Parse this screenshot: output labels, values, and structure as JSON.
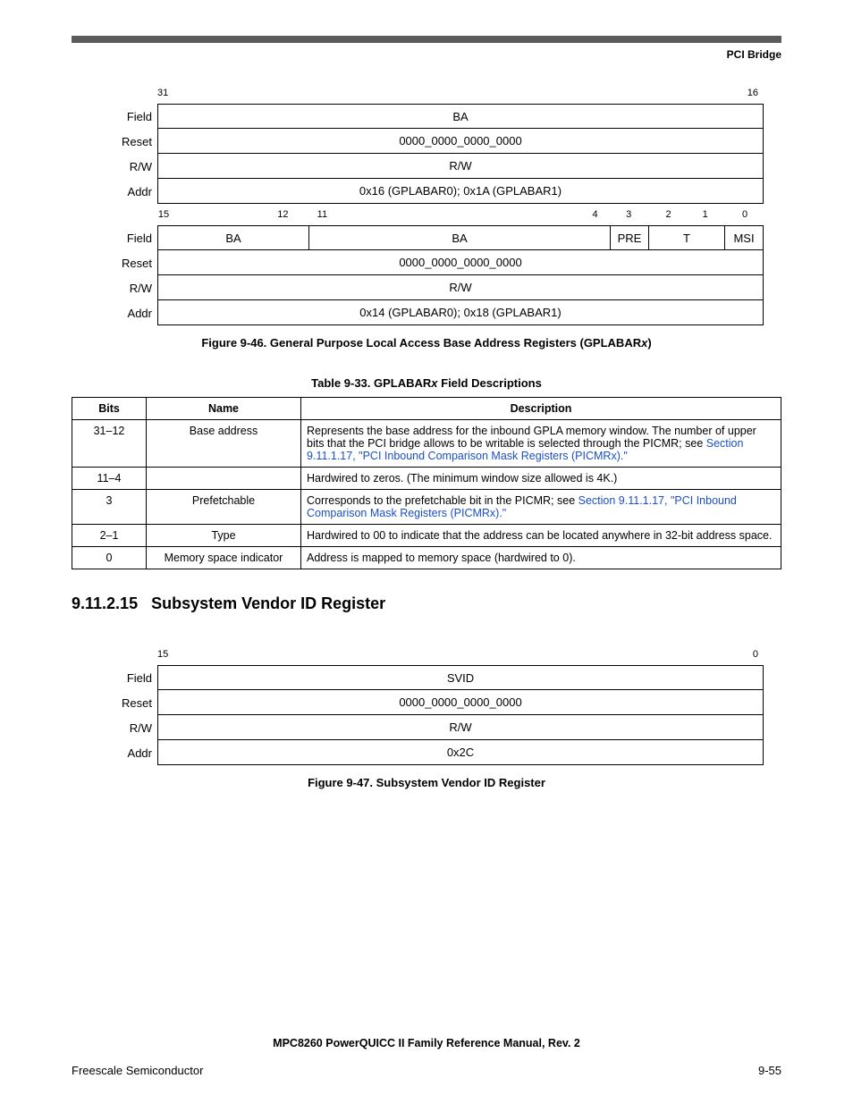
{
  "header": {
    "title": "PCI Bridge"
  },
  "diagram1": {
    "upper": {
      "bit_high": "31",
      "bit_low": "16",
      "field_label": "Field",
      "field_cells": [
        {
          "text": "BA",
          "flex": 16
        }
      ],
      "reset_label": "Reset",
      "reset_cells": [
        {
          "text": "0000_0000_0000_0000",
          "flex": 16
        }
      ],
      "rw_label": "R/W",
      "rw_cells": [
        {
          "text": "R/W",
          "flex": 16
        }
      ],
      "addr_label": "Addr",
      "addr_cells": [
        {
          "text": "0x16 (GPLABAR0); 0x1A (GPLABAR1)",
          "flex": 16
        }
      ]
    },
    "lower": {
      "bits": [
        "15",
        "12",
        "11",
        "4",
        "3",
        "2",
        "1",
        "0"
      ],
      "field_label": "Field",
      "field_cells": [
        {
          "text": "BA",
          "flex": 4
        },
        {
          "text": "BA",
          "flex": 8
        },
        {
          "text": "PRE",
          "flex": 1
        },
        {
          "text": "T",
          "flex": 2
        },
        {
          "text": "MSI",
          "flex": 1
        }
      ],
      "reset_label": "Reset",
      "reset_cells": [
        {
          "text": "0000_0000_0000_0000",
          "flex": 16
        }
      ],
      "rw_label": "R/W",
      "rw_cells": [
        {
          "text": "R/W",
          "flex": 16
        }
      ],
      "addr_label": "Addr",
      "addr_cells": [
        {
          "text": "0x14 (GPLABAR0); 0x18 (GPLABAR1)",
          "flex": 16
        }
      ]
    },
    "caption_prefix": "Figure 9-46. General Purpose Local Access Base Address Registers (GPLABAR",
    "caption_suffix": ")",
    "caption_em": "x"
  },
  "table1": {
    "caption_prefix": "Table 9-33. GPLABAR",
    "caption_em": "x",
    "caption_suffix": " Field Descriptions",
    "columns": [
      "Bits",
      "Name",
      "Description"
    ],
    "rows": [
      {
        "bits": "31–12",
        "name": "Base address",
        "desc_pre": "Represents the base address for the inbound GPLA memory window. The number of upper bits that the PCI bridge allows to be writable is selected through the PICMR; see ",
        "desc_link": "Section 9.11.1.17, \"PCI Inbound Comparison Mask Registers (PICMRx).\"",
        "desc_post": ""
      },
      {
        "bits": "11–4",
        "name": "",
        "desc_pre": "Hardwired to zeros. (The minimum window size allowed is 4K.)",
        "desc_link": "",
        "desc_post": ""
      },
      {
        "bits": "3",
        "name": "Prefetchable",
        "desc_pre": "Corresponds to the prefetchable bit in the PICMR; see ",
        "desc_link": "Section 9.11.1.17, \"PCI Inbound Comparison Mask Registers (PICMRx).\"",
        "desc_post": ""
      },
      {
        "bits": "2–1",
        "name": "Type",
        "desc_pre": "Hardwired to 00 to indicate that the address can be located anywhere in 32-bit address space.",
        "desc_link": "",
        "desc_post": ""
      },
      {
        "bits": "0",
        "name": "Memory space indicator",
        "desc_pre": "Address is mapped to memory space (hardwired to 0).",
        "desc_link": "",
        "desc_post": ""
      }
    ]
  },
  "section": {
    "number": "9.11.2.15",
    "title": "Subsystem Vendor ID Register"
  },
  "diagram2": {
    "bit_high": "15",
    "bit_low": "0",
    "field_label": "Field",
    "field_value": "SVID",
    "reset_label": "Reset",
    "reset_value": "0000_0000_0000_0000",
    "rw_label": "R/W",
    "rw_value": "R/W",
    "addr_label": "Addr",
    "addr_value": "0x2C",
    "caption": "Figure 9-47. Subsystem Vendor ID Register"
  },
  "footer": {
    "doc_title": "MPC8260 PowerQUICC II Family Reference Manual, Rev. 2",
    "left": "Freescale Semiconductor",
    "right": "9-55"
  }
}
